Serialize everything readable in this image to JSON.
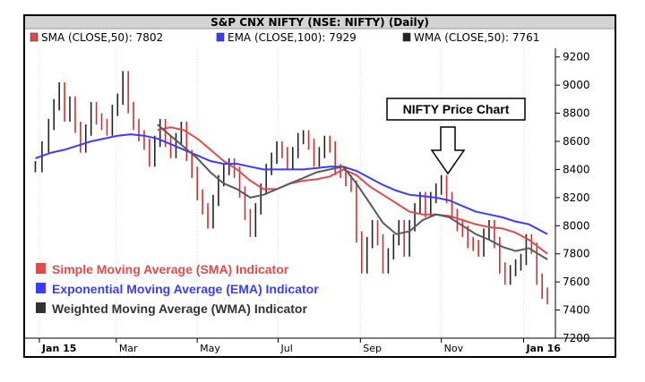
{
  "chart_data": {
    "type": "line",
    "title": "S&P CNX NIFTY (NSE: NIFTY) (Daily)",
    "legend_top": [
      {
        "label": "SMA (CLOSE,50): 7802",
        "color": "#e04a4a"
      },
      {
        "label": "EMA (CLOSE,100): 7929",
        "color": "#3b3bff"
      },
      {
        "label": "WMA (CLOSE,50): 7761",
        "color": "#222222"
      }
    ],
    "ylim": [
      7200,
      9300
    ],
    "y_ticks": [
      7200,
      7400,
      7600,
      7800,
      8000,
      8200,
      8400,
      8600,
      8800,
      9000,
      9200
    ],
    "x_ticks": [
      {
        "label": "Jan 15",
        "t": 1,
        "bold": true
      },
      {
        "label": "Mar",
        "t": 59
      },
      {
        "label": "May",
        "t": 120
      },
      {
        "label": "Jul",
        "t": 181
      },
      {
        "label": "Sep",
        "t": 243
      },
      {
        "label": "Nov",
        "t": 304
      },
      {
        "label": "Jan 16",
        "t": 366,
        "bold": true
      }
    ],
    "xlim": [
      -3,
      390
    ],
    "price_close": [
      [
        -2,
        8420
      ],
      [
        3,
        8560
      ],
      [
        8,
        8720
      ],
      [
        12,
        8860
      ],
      [
        16,
        8980
      ],
      [
        20,
        8780
      ],
      [
        24,
        8880
      ],
      [
        28,
        8700
      ],
      [
        32,
        8560
      ],
      [
        36,
        8680
      ],
      [
        40,
        8840
      ],
      [
        44,
        8760
      ],
      [
        48,
        8720
      ],
      [
        52,
        8680
      ],
      [
        56,
        8820
      ],
      [
        60,
        8900
      ],
      [
        64,
        9060
      ],
      [
        68,
        8840
      ],
      [
        72,
        8720
      ],
      [
        76,
        8640
      ],
      [
        80,
        8580
      ],
      [
        84,
        8460
      ],
      [
        88,
        8600
      ],
      [
        92,
        8720
      ],
      [
        96,
        8600
      ],
      [
        100,
        8520
      ],
      [
        104,
        8620
      ],
      [
        108,
        8700
      ],
      [
        112,
        8500
      ],
      [
        116,
        8380
      ],
      [
        120,
        8220
      ],
      [
        124,
        8120
      ],
      [
        128,
        8020
      ],
      [
        132,
        8180
      ],
      [
        136,
        8320
      ],
      [
        140,
        8400
      ],
      [
        144,
        8440
      ],
      [
        148,
        8380
      ],
      [
        152,
        8240
      ],
      [
        156,
        8080
      ],
      [
        160,
        7960
      ],
      [
        164,
        8120
      ],
      [
        168,
        8260
      ],
      [
        172,
        8400
      ],
      [
        176,
        8480
      ],
      [
        180,
        8560
      ],
      [
        184,
        8520
      ],
      [
        188,
        8440
      ],
      [
        192,
        8520
      ],
      [
        196,
        8620
      ],
      [
        200,
        8640
      ],
      [
        204,
        8580
      ],
      [
        208,
        8460
      ],
      [
        212,
        8520
      ],
      [
        216,
        8600
      ],
      [
        220,
        8560
      ],
      [
        224,
        8400
      ],
      [
        228,
        8380
      ],
      [
        232,
        8320
      ],
      [
        236,
        8280
      ],
      [
        240,
        7920
      ],
      [
        244,
        7700
      ],
      [
        248,
        7880
      ],
      [
        252,
        8000
      ],
      [
        256,
        7900
      ],
      [
        260,
        7700
      ],
      [
        264,
        7800
      ],
      [
        268,
        7900
      ],
      [
        272,
        8000
      ],
      [
        276,
        7820
      ],
      [
        280,
        8000
      ],
      [
        284,
        8120
      ],
      [
        288,
        8200
      ],
      [
        292,
        8100
      ],
      [
        296,
        8200
      ],
      [
        300,
        8260
      ],
      [
        304,
        8320
      ],
      [
        308,
        8200
      ],
      [
        312,
        8080
      ],
      [
        316,
        8000
      ],
      [
        320,
        7960
      ],
      [
        324,
        7880
      ],
      [
        328,
        7860
      ],
      [
        332,
        7820
      ],
      [
        336,
        7940
      ],
      [
        340,
        8000
      ],
      [
        344,
        7880
      ],
      [
        348,
        7700
      ],
      [
        352,
        7620
      ],
      [
        356,
        7680
      ],
      [
        360,
        7720
      ],
      [
        364,
        7760
      ],
      [
        368,
        7900
      ],
      [
        372,
        7840
      ],
      [
        376,
        7620
      ],
      [
        380,
        7520
      ],
      [
        384,
        7480
      ]
    ],
    "series": [
      {
        "name": "SMA",
        "color": "#e04a4a",
        "data": [
          [
            90,
            8680
          ],
          [
            100,
            8700
          ],
          [
            110,
            8680
          ],
          [
            120,
            8620
          ],
          [
            130,
            8540
          ],
          [
            140,
            8460
          ],
          [
            150,
            8400
          ],
          [
            160,
            8320
          ],
          [
            170,
            8260
          ],
          [
            180,
            8260
          ],
          [
            190,
            8300
          ],
          [
            200,
            8320
          ],
          [
            210,
            8330
          ],
          [
            220,
            8350
          ],
          [
            230,
            8400
          ],
          [
            240,
            8360
          ],
          [
            250,
            8280
          ],
          [
            260,
            8220
          ],
          [
            270,
            8160
          ],
          [
            280,
            8100
          ],
          [
            290,
            8080
          ],
          [
            300,
            8080
          ],
          [
            310,
            8070
          ],
          [
            320,
            8040
          ],
          [
            330,
            8010
          ],
          [
            340,
            7990
          ],
          [
            350,
            7980
          ],
          [
            360,
            7950
          ],
          [
            370,
            7900
          ],
          [
            384,
            7800
          ]
        ]
      },
      {
        "name": "EMA",
        "color": "#3b3bff",
        "data": [
          [
            -2,
            8480
          ],
          [
            10,
            8520
          ],
          [
            20,
            8540
          ],
          [
            30,
            8570
          ],
          [
            40,
            8600
          ],
          [
            50,
            8620
          ],
          [
            60,
            8640
          ],
          [
            70,
            8650
          ],
          [
            80,
            8640
          ],
          [
            90,
            8620
          ],
          [
            100,
            8580
          ],
          [
            110,
            8540
          ],
          [
            120,
            8500
          ],
          [
            130,
            8460
          ],
          [
            140,
            8440
          ],
          [
            150,
            8440
          ],
          [
            160,
            8420
          ],
          [
            170,
            8400
          ],
          [
            180,
            8400
          ],
          [
            190,
            8400
          ],
          [
            200,
            8400
          ],
          [
            210,
            8410
          ],
          [
            220,
            8420
          ],
          [
            230,
            8420
          ],
          [
            240,
            8390
          ],
          [
            250,
            8340
          ],
          [
            260,
            8290
          ],
          [
            270,
            8250
          ],
          [
            280,
            8220
          ],
          [
            290,
            8210
          ],
          [
            300,
            8200
          ],
          [
            310,
            8180
          ],
          [
            320,
            8140
          ],
          [
            330,
            8100
          ],
          [
            340,
            8080
          ],
          [
            350,
            8060
          ],
          [
            360,
            8030
          ],
          [
            370,
            8010
          ],
          [
            384,
            7940
          ]
        ]
      },
      {
        "name": "WMA",
        "color": "#5a5a5a",
        "data": [
          [
            90,
            8720
          ],
          [
            100,
            8640
          ],
          [
            110,
            8560
          ],
          [
            120,
            8480
          ],
          [
            130,
            8380
          ],
          [
            140,
            8300
          ],
          [
            150,
            8260
          ],
          [
            160,
            8200
          ],
          [
            170,
            8220
          ],
          [
            180,
            8260
          ],
          [
            190,
            8300
          ],
          [
            200,
            8340
          ],
          [
            210,
            8380
          ],
          [
            220,
            8400
          ],
          [
            230,
            8420
          ],
          [
            240,
            8300
          ],
          [
            250,
            8160
          ],
          [
            260,
            8020
          ],
          [
            270,
            7940
          ],
          [
            280,
            7960
          ],
          [
            290,
            8040
          ],
          [
            300,
            8080
          ],
          [
            310,
            8060
          ],
          [
            320,
            8000
          ],
          [
            330,
            7940
          ],
          [
            340,
            7900
          ],
          [
            350,
            7850
          ],
          [
            360,
            7820
          ],
          [
            370,
            7840
          ],
          [
            384,
            7760
          ]
        ]
      }
    ],
    "annotation": "NIFTY Price Chart",
    "legend_bottom": [
      {
        "label": "Simple Moving Average (SMA) Indicator",
        "color": "#e04a4a"
      },
      {
        "label": "Exponential Moving Average (EMA) Indicator",
        "color": "#3b3bff"
      },
      {
        "label": "Weighted Moving Average (WMA) Indicator",
        "color": "#333333"
      }
    ]
  }
}
